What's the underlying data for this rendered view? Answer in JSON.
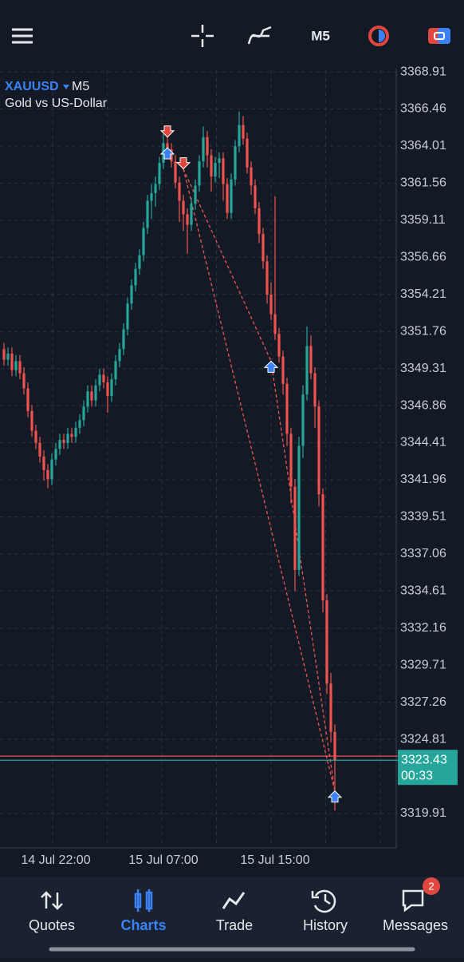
{
  "header": {
    "timeframe": "M5"
  },
  "chart_data": {
    "type": "candlestick",
    "symbol": "XAUUSD",
    "timeframe": "M5",
    "description": "Gold vs US-Dollar",
    "categories": [
      null,
      null,
      null,
      null,
      null,
      null,
      null,
      null,
      null,
      null,
      null,
      null,
      null,
      "14 Jul 22:00",
      null,
      null,
      null,
      null,
      null,
      null,
      null,
      null,
      null,
      null,
      null,
      null,
      null,
      null,
      null,
      null,
      null,
      null,
      null,
      null,
      null,
      null,
      null,
      null,
      null,
      null,
      "15 Jul 07:00",
      null,
      null,
      null,
      null,
      null,
      null,
      null,
      null,
      null,
      null,
      null,
      null,
      null,
      null,
      null,
      null,
      null,
      null,
      null,
      null,
      null,
      null,
      null,
      null,
      null,
      null,
      null,
      "15 Jul 15:00",
      null,
      null,
      null,
      null,
      null,
      null,
      null,
      null,
      null,
      null,
      null,
      null,
      null,
      null,
      null
    ],
    "candles": [
      [
        3350.6,
        3351.0,
        3349.5,
        3349.9
      ],
      [
        3349.9,
        3350.7,
        3349.5,
        3350.3
      ],
      [
        3350.3,
        3350.7,
        3348.8,
        3349.2
      ],
      [
        3349.2,
        3350.2,
        3348.8,
        3349.8
      ],
      [
        3349.8,
        3350.2,
        3348.6,
        3349.0
      ],
      [
        3349.0,
        3349.4,
        3347.6,
        3348.0
      ],
      [
        3348.0,
        3348.4,
        3346.1,
        3346.5
      ],
      [
        3346.5,
        3346.9,
        3344.8,
        3345.2
      ],
      [
        3345.2,
        3345.6,
        3344.0,
        3344.4
      ],
      [
        3344.4,
        3344.8,
        3343.1,
        3343.5
      ],
      [
        3343.5,
        3343.9,
        3341.9,
        3342.6
      ],
      [
        3342.6,
        3343.0,
        3341.4,
        3342.0
      ],
      [
        3342.0,
        3343.7,
        3341.6,
        3343.3
      ],
      [
        3343.3,
        3344.4,
        3342.9,
        3344.0
      ],
      [
        3344.0,
        3345.0,
        3343.6,
        3344.6
      ],
      [
        3344.6,
        3345.0,
        3344.0,
        3344.4
      ],
      [
        3344.4,
        3345.4,
        3344.0,
        3345.0
      ],
      [
        3345.0,
        3345.4,
        3344.4,
        3344.8
      ],
      [
        3344.8,
        3345.8,
        3344.4,
        3345.4
      ],
      [
        3345.4,
        3346.3,
        3345.0,
        3345.9
      ],
      [
        3345.9,
        3347.2,
        3345.5,
        3346.8
      ],
      [
        3346.8,
        3348.2,
        3346.4,
        3347.8
      ],
      [
        3347.8,
        3348.2,
        3346.8,
        3347.2
      ],
      [
        3347.2,
        3348.6,
        3346.8,
        3348.2
      ],
      [
        3348.2,
        3349.3,
        3347.8,
        3348.9
      ],
      [
        3348.9,
        3349.3,
        3348.0,
        3348.4
      ],
      [
        3348.4,
        3348.8,
        3346.4,
        3347.5
      ],
      [
        3347.5,
        3349.0,
        3347.1,
        3348.6
      ],
      [
        3348.6,
        3350.2,
        3348.2,
        3349.8
      ],
      [
        3349.8,
        3351.0,
        3349.4,
        3350.6
      ],
      [
        3350.6,
        3352.3,
        3350.2,
        3351.9
      ],
      [
        3351.9,
        3354.0,
        3351.5,
        3353.6
      ],
      [
        3353.6,
        3355.2,
        3353.2,
        3354.8
      ],
      [
        3354.8,
        3356.3,
        3354.4,
        3355.9
      ],
      [
        3355.9,
        3357.2,
        3355.5,
        3356.8
      ],
      [
        3356.8,
        3359.0,
        3356.4,
        3358.6
      ],
      [
        3358.6,
        3360.8,
        3358.2,
        3360.4
      ],
      [
        3360.4,
        3361.5,
        3359.2,
        3360.9
      ],
      [
        3360.9,
        3362.0,
        3360.0,
        3361.5
      ],
      [
        3361.5,
        3363.3,
        3361.1,
        3362.9
      ],
      [
        3362.9,
        3364.8,
        3362.5,
        3364.2
      ],
      [
        3364.2,
        3364.9,
        3363.4,
        3363.8
      ],
      [
        3363.8,
        3364.2,
        3362.6,
        3363.0
      ],
      [
        3363.0,
        3363.4,
        3361.2,
        3361.6
      ],
      [
        3361.6,
        3362.0,
        3359.0,
        3360.4
      ],
      [
        3360.4,
        3360.8,
        3358.4,
        3359.5
      ],
      [
        3359.5,
        3359.9,
        3356.9,
        3358.8
      ],
      [
        3358.8,
        3360.6,
        3358.4,
        3360.2
      ],
      [
        3360.2,
        3361.8,
        3359.8,
        3361.4
      ],
      [
        3361.4,
        3363.4,
        3361.0,
        3363.0
      ],
      [
        3363.0,
        3365.3,
        3362.6,
        3364.6
      ],
      [
        3364.6,
        3365.0,
        3362.6,
        3363.4
      ],
      [
        3363.4,
        3363.8,
        3361.0,
        3362.0
      ],
      [
        3362.0,
        3363.3,
        3361.6,
        3362.9
      ],
      [
        3362.9,
        3363.6,
        3361.9,
        3363.2
      ],
      [
        3363.2,
        3363.6,
        3360.4,
        3361.5
      ],
      [
        3361.5,
        3361.9,
        3359.2,
        3359.6
      ],
      [
        3359.6,
        3362.2,
        3359.2,
        3361.8
      ],
      [
        3361.8,
        3364.4,
        3361.4,
        3364.0
      ],
      [
        3364.0,
        3366.3,
        3363.6,
        3365.4
      ],
      [
        3365.4,
        3366.0,
        3364.1,
        3364.5
      ],
      [
        3364.5,
        3364.9,
        3362.2,
        3362.6
      ],
      [
        3362.6,
        3363.0,
        3360.8,
        3361.4
      ],
      [
        3361.4,
        3361.8,
        3359.5,
        3359.9
      ],
      [
        3359.9,
        3360.3,
        3357.6,
        3358.2
      ],
      [
        3358.2,
        3358.6,
        3355.9,
        3356.4
      ],
      [
        3356.4,
        3356.8,
        3353.6,
        3354.2
      ],
      [
        3354.2,
        3355.0,
        3352.5,
        3352.9
      ],
      [
        3352.9,
        3360.7,
        3351.2,
        3351.6
      ],
      [
        3351.6,
        3352.0,
        3349.7,
        3350.1
      ],
      [
        3350.1,
        3350.5,
        3347.6,
        3348.3
      ],
      [
        3348.3,
        3348.7,
        3344.2,
        3345.0
      ],
      [
        3345.0,
        3345.4,
        3340.4,
        3341.5
      ],
      [
        3341.5,
        3342.0,
        3334.6,
        3336.0
      ],
      [
        3336.0,
        3344.8,
        3335.6,
        3344.2
      ],
      [
        3344.2,
        3348.2,
        3343.4,
        3347.6
      ],
      [
        3347.6,
        3352.1,
        3347.2,
        3350.8
      ],
      [
        3350.8,
        3351.5,
        3348.6,
        3349.0
      ],
      [
        3349.0,
        3349.4,
        3345.4,
        3346.8
      ],
      [
        3346.8,
        3347.2,
        3340.2,
        3341.0
      ],
      [
        3341.0,
        3341.4,
        3333.2,
        3334.0
      ],
      [
        3334.0,
        3334.4,
        3327.8,
        3328.5
      ],
      [
        3328.5,
        3329.2,
        3324.6,
        3325.3
      ],
      [
        3325.3,
        3325.8,
        3320.1,
        3323.43
      ]
    ],
    "up_color": "#26a69a",
    "down_color": "#ef5350",
    "ylim": [
      3317.64,
      3369.02
    ],
    "yticks": [
      3368.91,
      3366.46,
      3364.01,
      3361.56,
      3359.11,
      3356.66,
      3354.21,
      3351.76,
      3349.31,
      3346.86,
      3344.41,
      3341.96,
      3339.51,
      3337.06,
      3334.61,
      3332.16,
      3329.71,
      3327.26,
      3324.81,
      3319.91
    ],
    "grid": true,
    "bid": 3323.43,
    "countdown": "00:33",
    "ask": 3323.7,
    "deals": [
      {
        "x": 41,
        "price": 3364.6,
        "direction": "down"
      },
      {
        "x": 41,
        "price": 3363.9,
        "direction": "up"
      },
      {
        "x": 45,
        "price": 3362.5,
        "direction": "down"
      },
      {
        "x": 67,
        "price": 3349.8,
        "direction": "up"
      },
      {
        "x": 83,
        "price": 3321.4,
        "direction": "up"
      }
    ],
    "trade_lines": [
      {
        "x": [
          45,
          67
        ],
        "price": [
          3362.5,
          3349.8
        ]
      },
      {
        "x": [
          67,
          83
        ],
        "price": [
          3349.8,
          3321.4
        ]
      },
      {
        "x": [
          45,
          83
        ],
        "price": [
          3362.5,
          3321.4
        ]
      }
    ]
  },
  "nav": {
    "items": [
      "Quotes",
      "Charts",
      "Trade",
      "History",
      "Messages"
    ],
    "badge": 2
  }
}
